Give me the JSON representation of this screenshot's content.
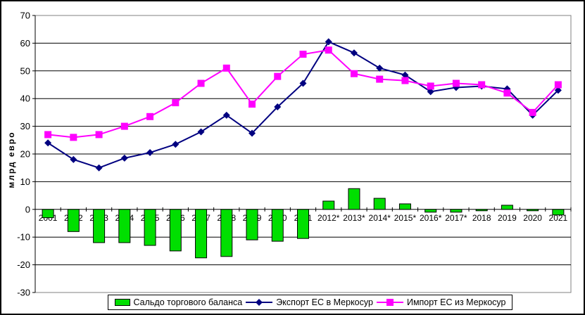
{
  "window": {
    "background": "#FFFFFF",
    "border_color": "#000000"
  },
  "chart_data": {
    "type": "combo-bar-line",
    "title": "",
    "xlabel": "",
    "ylabel": "млрд евро",
    "ylim": [
      -30,
      70
    ],
    "ytick_step": 10,
    "grid": true,
    "legend_position": "bottom",
    "categories": [
      "2001",
      "2002",
      "2003",
      "2004",
      "2005",
      "2006",
      "2007",
      "2008",
      "2009",
      "2010",
      "2011",
      "2012*",
      "2013*",
      "2014*",
      "2015*",
      "2016*",
      "2017*",
      "2018",
      "2019",
      "2020",
      "2021"
    ],
    "series": [
      {
        "name": "Сальдо торгового баланса",
        "type": "bar",
        "color": "#00DF00",
        "values": [
          -3,
          -8,
          -12,
          -12,
          -13,
          -15,
          -17.5,
          -17,
          -11,
          -11.5,
          -10.5,
          3,
          7.5,
          4,
          2,
          -1,
          -1,
          -0.5,
          1.5,
          -0.5,
          -2
        ]
      },
      {
        "name": "Экспорт ЕС в Меркосур",
        "type": "line",
        "marker": "diamond",
        "color": "#000080",
        "values": [
          24,
          18,
          15,
          18.5,
          20.5,
          23.5,
          28,
          34,
          27.5,
          37,
          45.5,
          60.5,
          56.5,
          51,
          48.5,
          42.5,
          44,
          44.5,
          43.5,
          34,
          43
        ]
      },
      {
        "name": "Импорт ЕС из Меркосур",
        "type": "line",
        "marker": "square",
        "color": "#FF00FF",
        "values": [
          27,
          26,
          27,
          30,
          33.5,
          38.5,
          45.5,
          51,
          38,
          48,
          56,
          57.5,
          49,
          47,
          46.5,
          44.5,
          45.5,
          45,
          42,
          35,
          45
        ]
      }
    ],
    "colors": {
      "gridline": "#000000",
      "plot_border": "#808080",
      "axis": "#000000",
      "text": "#000000"
    }
  }
}
